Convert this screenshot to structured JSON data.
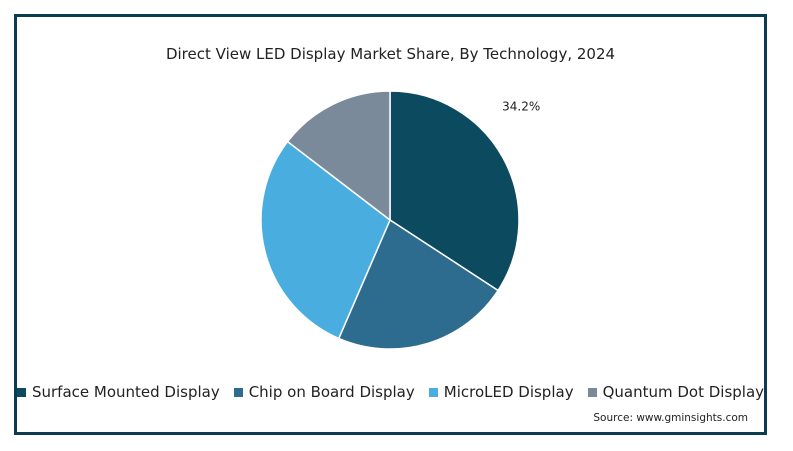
{
  "chart_data": {
    "type": "pie",
    "title": "Direct View LED Display Market Share, By Technology, 2024",
    "slices": [
      {
        "name": "Surface Mounted Display",
        "value": 34.2,
        "color": "#0b4a5f",
        "label": "34.2%"
      },
      {
        "name": "Chip on Board Display",
        "value": 22.3,
        "color": "#2d6c8f",
        "label": ""
      },
      {
        "name": "MicroLED Display",
        "value": 28.9,
        "color": "#49ade0",
        "label": ""
      },
      {
        "name": "Quantum Dot Display",
        "value": 14.6,
        "color": "#7a8a9a",
        "label": ""
      }
    ],
    "start_angle_deg": 0,
    "direction": "clockwise",
    "legend_position": "bottom"
  },
  "source": "Source: www.gminsights.com"
}
